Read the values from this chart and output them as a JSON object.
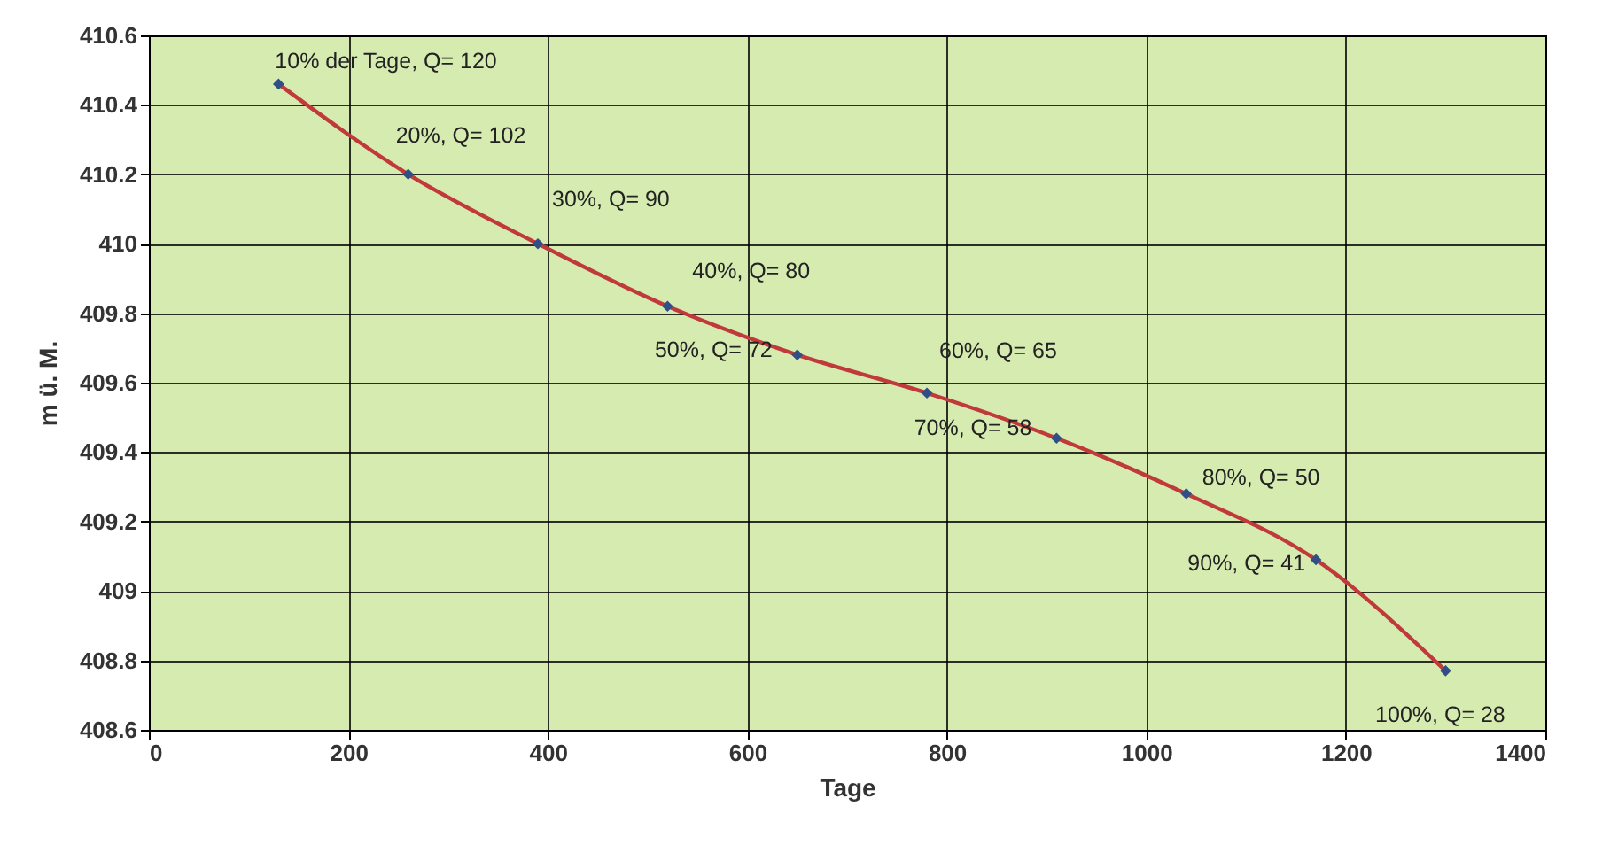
{
  "chart_data": {
    "type": "line",
    "xlabel": "Tage",
    "ylabel": "m ü. M.",
    "x": [
      130,
      260,
      390,
      520,
      650,
      780,
      910,
      1040,
      1170,
      1300
    ],
    "series": [
      {
        "color": "#c0393b",
        "values": [
          410.46,
          410.2,
          410.0,
          409.82,
          409.68,
          409.57,
          409.44,
          409.28,
          409.09,
          408.77
        ]
      }
    ],
    "xlim": [
      0,
      1400
    ],
    "xticks": [
      0,
      200,
      400,
      600,
      800,
      1000,
      1200,
      1400
    ],
    "ylim": [
      408.6,
      410.6
    ],
    "yticks": [
      408.6,
      408.8,
      409,
      409.2,
      409.4,
      409.6,
      409.8,
      410,
      410.2,
      410.4,
      410.6
    ],
    "grid": true,
    "marker": "diamond",
    "line_style": "solid",
    "annotations": [
      {
        "text": "10% der Tage, Q= 120",
        "x": 130,
        "y": 410.46
      },
      {
        "text": "20%, Q= 102",
        "x": 260,
        "y": 410.2
      },
      {
        "text": "30%, Q= 90",
        "x": 390,
        "y": 410.0
      },
      {
        "text": "40%, Q= 80",
        "x": 520,
        "y": 409.82
      },
      {
        "text": "50%, Q= 72",
        "x": 650,
        "y": 409.68
      },
      {
        "text": "60%, Q= 65",
        "x": 780,
        "y": 409.57
      },
      {
        "text": "70%, Q= 58",
        "x": 910,
        "y": 409.44
      },
      {
        "text": "80%, Q= 50",
        "x": 1040,
        "y": 409.28
      },
      {
        "text": "90%, Q= 41",
        "x": 1170,
        "y": 409.09
      },
      {
        "text": "100%, Q= 28",
        "x": 1300,
        "y": 408.77
      }
    ]
  }
}
